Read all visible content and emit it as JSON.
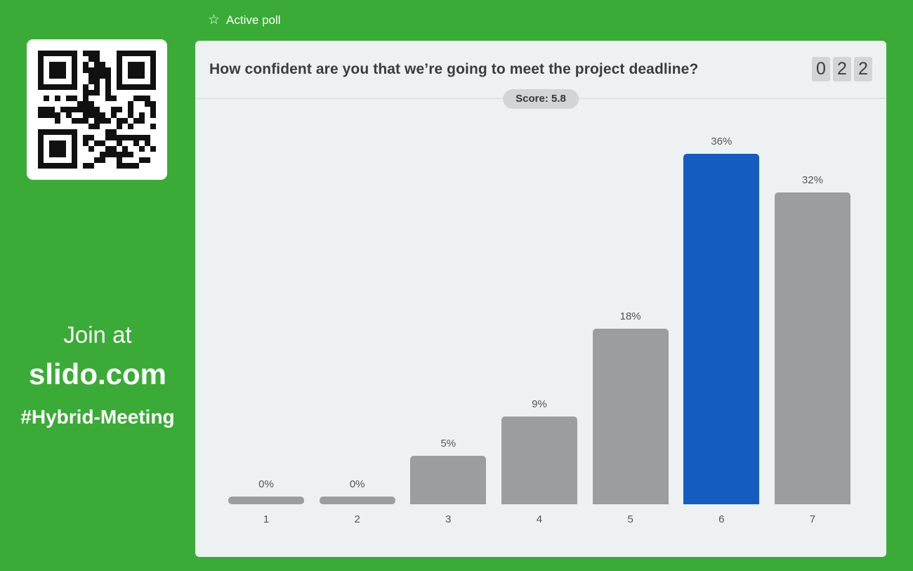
{
  "sidebar": {
    "join_line1": "Join at",
    "join_line2": "slido.com",
    "event_hashtag": "#Hybrid-Meeting",
    "qr_icon": "qr-code"
  },
  "topbar": {
    "star_icon": "☆",
    "status_label": "Active poll"
  },
  "poll": {
    "question": "How confident are you that we’re going to meet the project deadline?",
    "score_label": "Score: 5.8",
    "votes_counter_digits": [
      "0",
      "2",
      "2"
    ]
  },
  "chart_data": {
    "type": "bar",
    "title": "How confident are you that we’re going to meet the project deadline?",
    "categories": [
      "1",
      "2",
      "3",
      "4",
      "5",
      "6",
      "7"
    ],
    "values": [
      0,
      0,
      5,
      9,
      18,
      36,
      32
    ],
    "value_labels": [
      "0%",
      "0%",
      "5%",
      "9%",
      "18%",
      "36%",
      "32%"
    ],
    "highlighted_index": 5,
    "xlabel": "",
    "ylabel": "",
    "ylim": [
      0,
      38
    ],
    "grid": false,
    "legend": false,
    "bar_color": "#9b9e9e",
    "highlight_color": "#155cc0"
  },
  "colors": {
    "background_green": "#3aab36",
    "panel_background": "#edf1f1",
    "divider": "#dde3e4",
    "badge_background": "#d1d5d6",
    "text_dark": "#383d40",
    "text_muted": "#51565a"
  }
}
